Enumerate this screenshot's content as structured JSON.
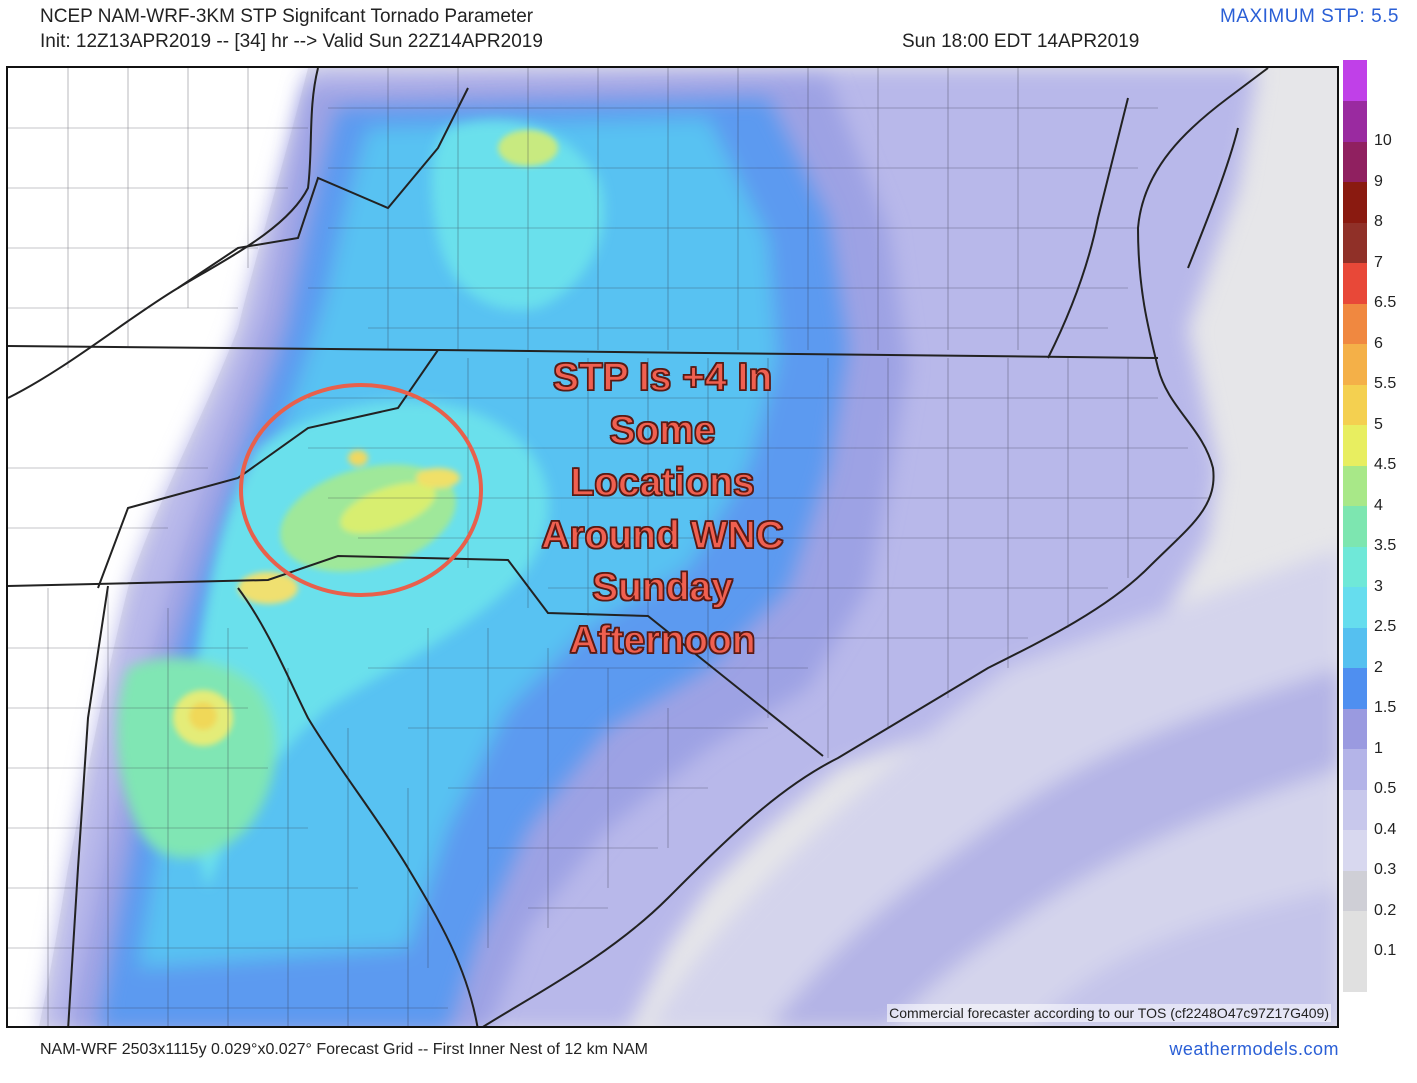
{
  "header": {
    "title_line1": "NCEP NAM-WRF-3KM STP Signifcant Tornado Parameter",
    "title_line2": "Init: 12Z13APR2019 -- [34] hr --> Valid Sun 22Z14APR2019",
    "valid_local": "Sun 18:00 EDT 14APR2019",
    "max_stp": "MAXIMUM STP: 5.5"
  },
  "footer": {
    "grid_info": "NAM-WRF 2503x1115y 0.029°x0.027° Forecast Grid -- First Inner Nest of 12 km NAM",
    "site": "weathermodels.com"
  },
  "map": {
    "commercial_notice": "Commercial forecaster according to our TOS (cf2248O47c97Z17G409)",
    "annotation_lines": [
      "STP Is +4 In",
      "Some",
      "Locations",
      "Around WNC",
      "Sunday",
      "Afternoon"
    ],
    "annotation_color": "#f06050",
    "circle_color": "#e8604c",
    "land_color": "#ffffff",
    "border_color": "#222222"
  },
  "colorbar": {
    "levels": [
      {
        "label": "",
        "color": "#e0e0e0"
      },
      {
        "label": "0.1",
        "color": "#e0e0e0"
      },
      {
        "label": "0.2",
        "color": "#cfcfd6"
      },
      {
        "label": "0.3",
        "color": "#d8d8ef"
      },
      {
        "label": "0.4",
        "color": "#c8c8ec"
      },
      {
        "label": "0.5",
        "color": "#b4b4e8"
      },
      {
        "label": "1",
        "color": "#9a9ae0"
      },
      {
        "label": "1.5",
        "color": "#4f8ff0"
      },
      {
        "label": "2",
        "color": "#55c0f0"
      },
      {
        "label": "2.5",
        "color": "#66ddee"
      },
      {
        "label": "3",
        "color": "#6fe8d8"
      },
      {
        "label": "3.5",
        "color": "#7de6b0"
      },
      {
        "label": "4",
        "color": "#a8e888"
      },
      {
        "label": "4.5",
        "color": "#e8ee60"
      },
      {
        "label": "5",
        "color": "#f4d050"
      },
      {
        "label": "5.5",
        "color": "#f4b048"
      },
      {
        "label": "6",
        "color": "#f08840"
      },
      {
        "label": "6.5",
        "color": "#e84838"
      },
      {
        "label": "7",
        "color": "#903028"
      },
      {
        "label": "8",
        "color": "#8a1a10"
      },
      {
        "label": "9",
        "color": "#902060"
      },
      {
        "label": "10",
        "color": "#9a2aa0"
      },
      {
        "label": "",
        "color": "#c040e8"
      }
    ]
  }
}
